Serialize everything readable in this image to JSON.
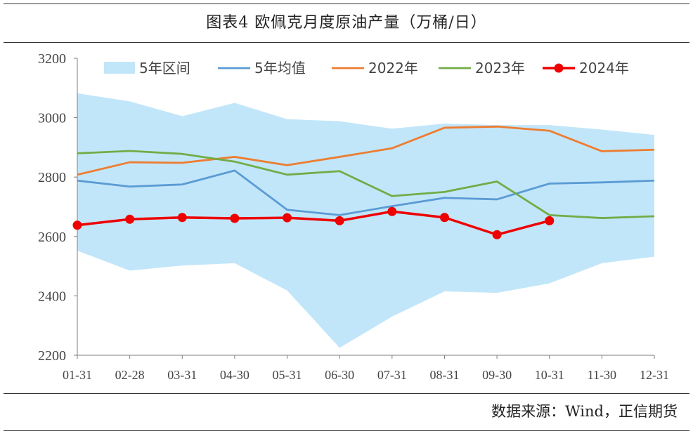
{
  "header": {
    "title": "图表4   欧佩克月度原油产量（万桶/日）"
  },
  "footer": {
    "source": "数据来源：Wind，正信期货"
  },
  "colors": {
    "band": "#c2e6f9",
    "avg": "#5b9bd5",
    "y2022": "#ed7d31",
    "y2023": "#70ad47",
    "y2024": "#ee0000",
    "axis": "#7f7f7f"
  },
  "chart_data": {
    "type": "line",
    "categories": [
      "01-31",
      "02-28",
      "03-31",
      "04-30",
      "05-31",
      "06-30",
      "07-31",
      "08-31",
      "09-30",
      "10-31",
      "11-30",
      "12-31"
    ],
    "ylim": [
      2200,
      3200
    ],
    "yticks": [
      2200,
      2400,
      2600,
      2800,
      3000,
      3200
    ],
    "legend_position": "top",
    "band": {
      "name": "5年区间",
      "upper": [
        3082,
        3055,
        3005,
        3050,
        2995,
        2988,
        2963,
        2980,
        2975,
        2975,
        2960,
        2942
      ],
      "lower": [
        2552,
        2485,
        2502,
        2510,
        2418,
        2225,
        2330,
        2415,
        2410,
        2442,
        2510,
        2532
      ]
    },
    "series": [
      {
        "name": "5年均值",
        "color_key": "avg",
        "values": [
          2788,
          2768,
          2775,
          2822,
          2690,
          2672,
          2702,
          2730,
          2725,
          2778,
          2782,
          2788
        ]
      },
      {
        "name": "2022年",
        "color_key": "y2022",
        "values": [
          2808,
          2850,
          2848,
          2868,
          2840,
          2868,
          2897,
          2966,
          2970,
          2956,
          2887,
          2892
        ]
      },
      {
        "name": "2023年",
        "color_key": "y2023",
        "values": [
          2880,
          2888,
          2878,
          2852,
          2808,
          2820,
          2736,
          2750,
          2785,
          2672,
          2662,
          2668
        ]
      },
      {
        "name": "2024年",
        "color_key": "y2024",
        "markers": true,
        "values": [
          2638,
          2658,
          2664,
          2661,
          2663,
          2653,
          2684,
          2664,
          2606,
          2653,
          null,
          null
        ]
      }
    ]
  }
}
